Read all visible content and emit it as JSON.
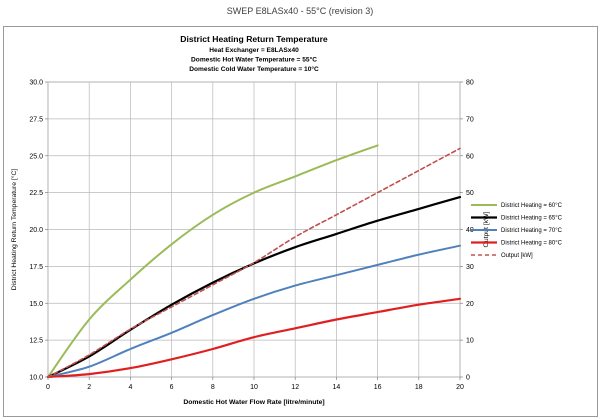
{
  "window": {
    "title": "SWEP E8LASx40 - 55°C (revision 3)"
  },
  "chart_data": {
    "type": "line",
    "title": "District Heating Return Temperature",
    "subtitles": [
      "Heat Exchanger = E8LASx40",
      "Domestic Hot Water Temperature = 55°C",
      "Domestic Cold Water Temperature = 10°C"
    ],
    "xlabel": "Domestic Hot Water Flow Rate [litre/minute]",
    "ylabel": "District Heating Return Temperature [°C]",
    "y2label": "Output [kW]",
    "xlim": [
      0,
      20
    ],
    "ylim": [
      10,
      30
    ],
    "y2lim": [
      0,
      80
    ],
    "x_ticks": [
      "0",
      "2",
      "4",
      "6",
      "8",
      "10",
      "12",
      "14",
      "16",
      "18",
      "20"
    ],
    "y_ticks": [
      "10.0",
      "12.5",
      "15.0",
      "17.5",
      "20.0",
      "22.5",
      "25.0",
      "27.5",
      "30.0"
    ],
    "y2_ticks": [
      "0",
      "10",
      "20",
      "30",
      "40",
      "50",
      "60",
      "70",
      "80"
    ],
    "grid": true,
    "legend_position": "right",
    "series": [
      {
        "name": "District Heating = 60°C",
        "axis": "left",
        "color": "#9bbb59",
        "width": 2,
        "dash": "",
        "x": [
          0,
          2,
          4,
          6,
          8,
          10,
          12,
          14,
          16
        ],
        "y": [
          10.0,
          13.9,
          16.6,
          19.0,
          21.0,
          22.5,
          23.6,
          24.7,
          25.7
        ]
      },
      {
        "name": "District Heating = 65°C",
        "axis": "left",
        "color": "#000000",
        "width": 2.2,
        "dash": "",
        "x": [
          0,
          2,
          4,
          6,
          8,
          10,
          12,
          14,
          16,
          18,
          20
        ],
        "y": [
          10.0,
          11.4,
          13.2,
          14.9,
          16.4,
          17.7,
          18.8,
          19.7,
          20.6,
          21.4,
          22.2
        ]
      },
      {
        "name": "District Heating = 70°C",
        "axis": "left",
        "color": "#4f81bd",
        "width": 2,
        "dash": "",
        "x": [
          0,
          2,
          4,
          6,
          8,
          10,
          12,
          14,
          16,
          18,
          20
        ],
        "y": [
          10.0,
          10.7,
          11.9,
          13.0,
          14.2,
          15.3,
          16.2,
          16.9,
          17.6,
          18.3,
          18.9
        ]
      },
      {
        "name": "District Heating = 80°C",
        "axis": "left",
        "color": "#e02020",
        "width": 2.2,
        "dash": "",
        "x": [
          0,
          2,
          4,
          6,
          8,
          10,
          12,
          14,
          16,
          18,
          20
        ],
        "y": [
          10.0,
          10.2,
          10.6,
          11.2,
          11.9,
          12.7,
          13.3,
          13.9,
          14.4,
          14.9,
          15.3
        ]
      },
      {
        "name": "Output [kW]",
        "axis": "right",
        "color": "#c0504d",
        "width": 1.6,
        "dash": "4,3",
        "x": [
          0,
          2,
          4,
          6,
          8,
          10,
          12,
          14,
          16,
          18,
          20
        ],
        "y": [
          0,
          6,
          13,
          19,
          25,
          31,
          38,
          44,
          50,
          56,
          62
        ]
      }
    ]
  }
}
